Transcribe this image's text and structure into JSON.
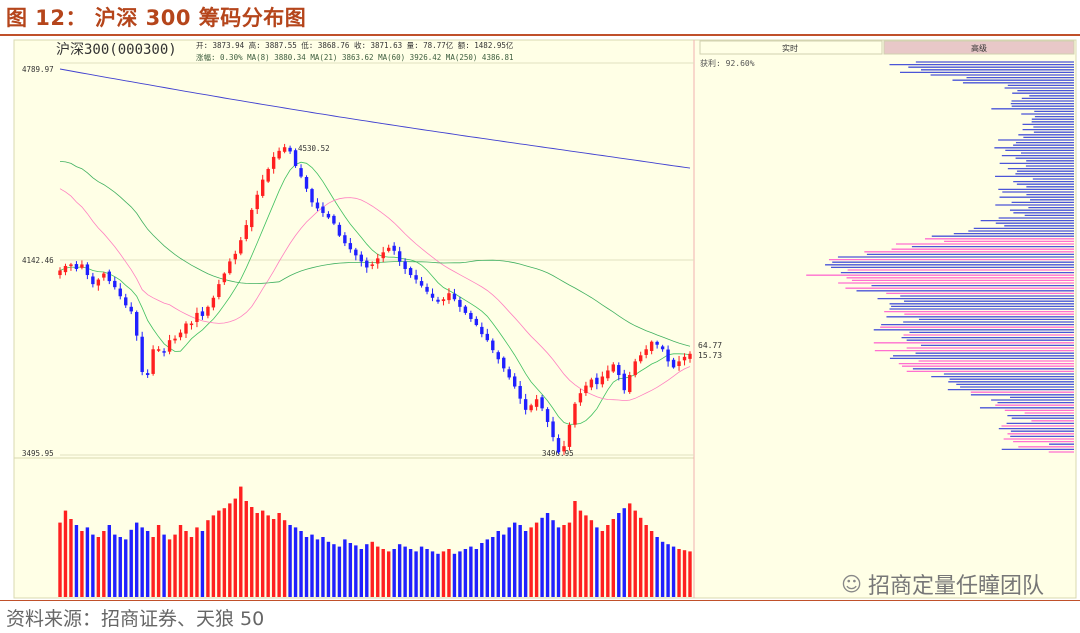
{
  "figure_title": "图 12： 沪深 300 筹码分布图",
  "source_note": "资料来源：招商证券、天狼 50",
  "watermark": "招商定量任瞳团队",
  "colors": {
    "up": "#ff2020",
    "down": "#2020ff",
    "panel_bg": "#ffffe6",
    "ma_short": "#40c060",
    "ma_mid": "#ff80c0",
    "ma_long": "#40b060",
    "ma_250": "#4040d0",
    "profile_blue": "#4a55d8",
    "profile_pink": "#ff6fd0"
  },
  "chart_data": {
    "type": "candlestick",
    "security": "沪深300(000300)",
    "ohlc_info": "开: 3873.94 高: 3887.55 低: 3868.76 收: 3871.63 量: 78.77亿 额: 1482.95亿",
    "ma_info": "涨幅: 0.30% MA(8) 3880.34 MA(21) 3863.62 MA(60) 3926.42 MA(250) 4386.81",
    "y_ticks": [
      "4789.97",
      "4142.46",
      "3495.95"
    ],
    "high_label": "4530.52",
    "low_label": "3496.95",
    "ylim": [
      3495.95,
      4789.97
    ],
    "right_labels": [
      "64.77",
      "15.73"
    ],
    "tabs": [
      "实时",
      "高级"
    ],
    "profit_ratio_label": "获利: 92.60%",
    "closes": [
      4105,
      4120,
      4125,
      4110,
      4125,
      4090,
      4060,
      4075,
      4095,
      4070,
      4050,
      4020,
      3990,
      3970,
      3890,
      3770,
      3760,
      3845,
      3845,
      3835,
      3875,
      3880,
      3900,
      3930,
      3930,
      3965,
      3955,
      3985,
      4015,
      4060,
      4095,
      4135,
      4160,
      4205,
      4255,
      4305,
      4355,
      4405,
      4440,
      4480,
      4500,
      4512,
      4498,
      4450,
      4415,
      4375,
      4330,
      4310,
      4295,
      4280,
      4260,
      4220,
      4195,
      4175,
      4155,
      4135,
      4115,
      4125,
      4145,
      4165,
      4180,
      4170,
      4135,
      4110,
      4090,
      4075,
      4055,
      4035,
      4015,
      4002,
      4010,
      4030,
      4010,
      3985,
      3965,
      3945,
      3925,
      3895,
      3875,
      3842,
      3812,
      3782,
      3752,
      3722,
      3682,
      3645,
      3660,
      3680,
      3650,
      3605,
      3555,
      3505,
      3525,
      3595,
      3665,
      3700,
      3725,
      3745,
      3730,
      3755,
      3775,
      3795,
      3760,
      3710,
      3760,
      3805,
      3825,
      3845,
      3870,
      3860,
      3845,
      3805,
      3785,
      3805,
      3820,
      3830
    ],
    "volume_ratio": [
      0.62,
      0.72,
      0.65,
      0.6,
      0.55,
      0.58,
      0.52,
      0.5,
      0.55,
      0.6,
      0.52,
      0.5,
      0.48,
      0.56,
      0.62,
      0.58,
      0.55,
      0.5,
      0.6,
      0.52,
      0.48,
      0.52,
      0.6,
      0.55,
      0.5,
      0.58,
      0.55,
      0.64,
      0.68,
      0.72,
      0.74,
      0.78,
      0.82,
      0.92,
      0.8,
      0.75,
      0.7,
      0.72,
      0.68,
      0.65,
      0.7,
      0.64,
      0.6,
      0.58,
      0.55,
      0.5,
      0.52,
      0.48,
      0.5,
      0.46,
      0.44,
      0.42,
      0.48,
      0.45,
      0.43,
      0.4,
      0.44,
      0.46,
      0.42,
      0.4,
      0.38,
      0.4,
      0.44,
      0.42,
      0.4,
      0.38,
      0.42,
      0.4,
      0.38,
      0.36,
      0.38,
      0.4,
      0.36,
      0.38,
      0.4,
      0.42,
      0.4,
      0.45,
      0.48,
      0.5,
      0.55,
      0.52,
      0.58,
      0.62,
      0.6,
      0.55,
      0.58,
      0.62,
      0.66,
      0.7,
      0.64,
      0.58,
      0.6,
      0.62,
      0.8,
      0.72,
      0.68,
      0.64,
      0.58,
      0.55,
      0.6,
      0.65,
      0.7,
      0.74,
      0.78,
      0.72,
      0.66,
      0.6,
      0.55,
      0.5,
      0.46,
      0.44,
      0.42,
      0.4,
      0.39,
      0.38
    ]
  }
}
